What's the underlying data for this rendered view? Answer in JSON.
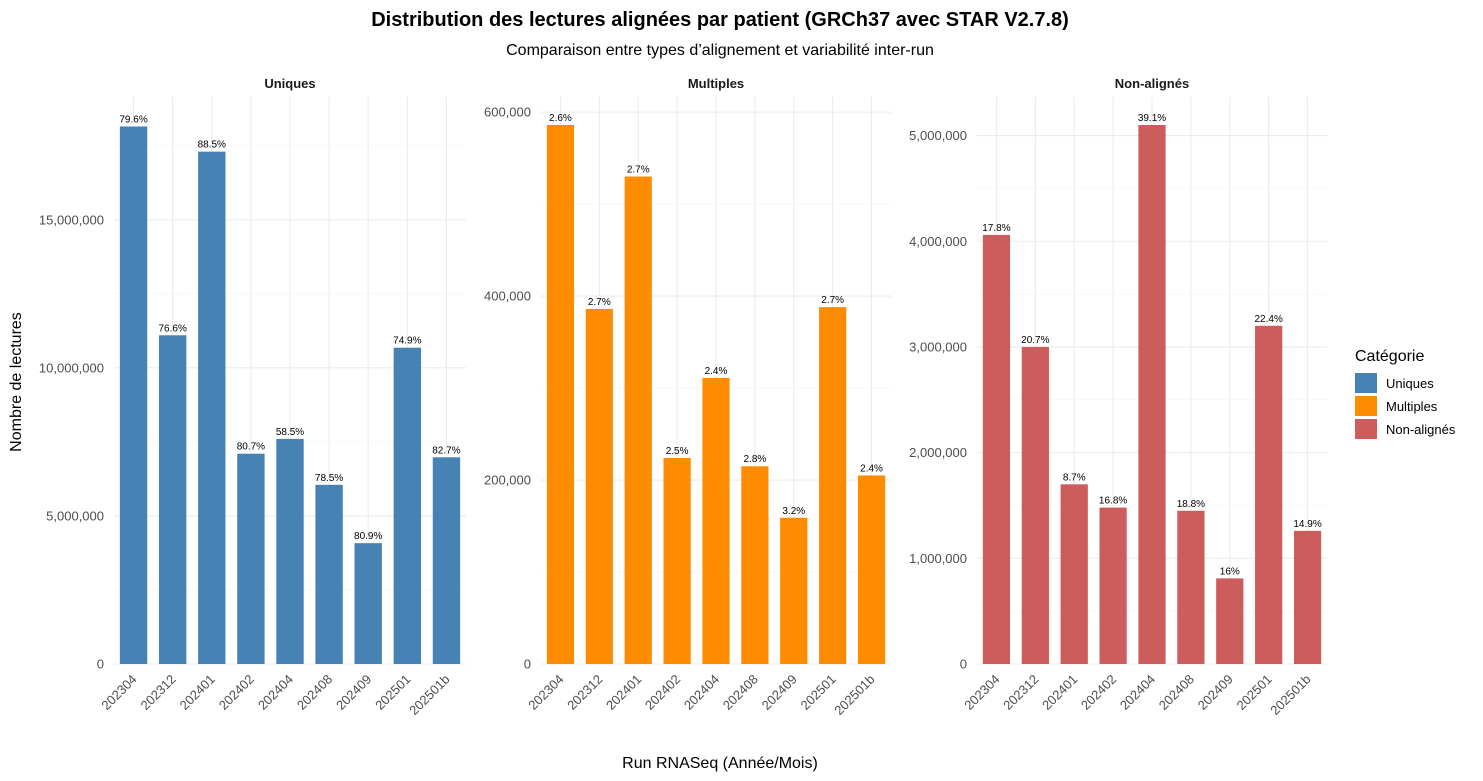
{
  "chart_data": {
    "type": "bar",
    "title": "Distribution des lectures alignées par patient (GRCh37 avec STAR V2.7.8)",
    "subtitle": "Comparaison entre types d’alignement et variabilité inter-run",
    "xlabel": "Run RNASeq (Année/Mois)",
    "ylabel": "Nombre de lectures",
    "categories": [
      "202304",
      "202312",
      "202401",
      "202402",
      "202404",
      "202408",
      "202409",
      "202501",
      "202501b"
    ],
    "facets": [
      {
        "name": "Uniques",
        "color": "#4682B4",
        "ylim": [
          0,
          18200000
        ],
        "yticks": [
          0,
          5000000,
          10000000,
          15000000
        ],
        "ytick_labels": [
          "0",
          "5,000,000",
          "10,000,000",
          "15,000,000"
        ],
        "values": [
          18150000,
          11100000,
          17300000,
          7100000,
          7600000,
          6050000,
          4080000,
          10680000,
          6980000
        ],
        "labels": [
          "79.6%",
          "76.6%",
          "88.5%",
          "80.7%",
          "58.5%",
          "78.5%",
          "80.9%",
          "74.9%",
          "82.7%"
        ]
      },
      {
        "name": "Multiples",
        "color": "#FF8C00",
        "ylim": [
          0,
          586000
        ],
        "yticks": [
          0,
          200000,
          400000,
          600000
        ],
        "ytick_labels": [
          "0",
          "200,000",
          "400,000",
          "600,000"
        ],
        "values": [
          586000,
          386000,
          530000,
          224000,
          311000,
          215000,
          159000,
          388000,
          205000
        ],
        "labels": [
          "2.6%",
          "2.7%",
          "2.7%",
          "2.5%",
          "2.4%",
          "2.8%",
          "3.2%",
          "2.7%",
          "2.4%"
        ]
      },
      {
        "name": "Non-alignés",
        "color": "#CD5C5C",
        "ylim": [
          0,
          5100000
        ],
        "yticks": [
          0,
          1000000,
          2000000,
          3000000,
          4000000,
          5000000
        ],
        "ytick_labels": [
          "0",
          "1,000,000",
          "2,000,000",
          "3,000,000",
          "4,000,000",
          "5,000,000"
        ],
        "values": [
          4060000,
          3000000,
          1700000,
          1480000,
          5100000,
          1450000,
          810000,
          3200000,
          1260000
        ],
        "labels": [
          "17.8%",
          "20.7%",
          "8.7%",
          "16.8%",
          "39.1%",
          "18.8%",
          "16%",
          "22.4%",
          "14.9%"
        ]
      }
    ],
    "legend": {
      "title": "Catégorie",
      "position": "right",
      "items": [
        {
          "label": "Uniques",
          "color": "#4682B4"
        },
        {
          "label": "Multiples",
          "color": "#FF8C00"
        },
        {
          "label": "Non-alignés",
          "color": "#CD5C5C"
        }
      ]
    },
    "grid": true,
    "scales": "free_y"
  }
}
